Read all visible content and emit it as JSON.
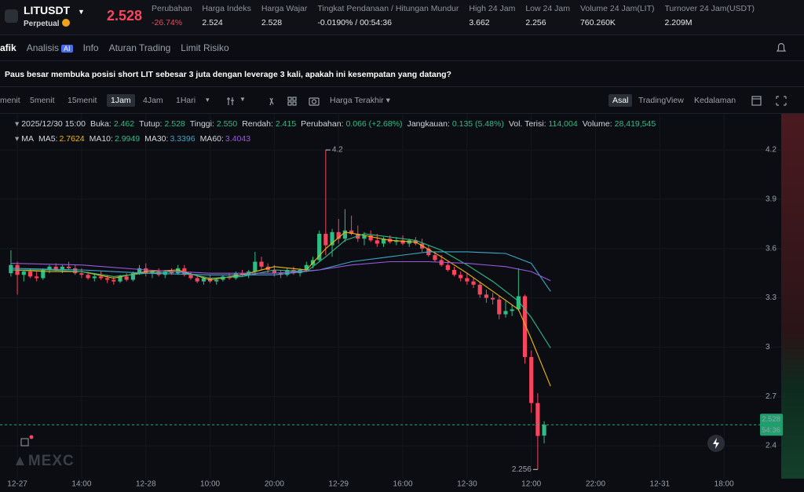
{
  "header": {
    "symbol": "LITUSDT",
    "subtitle": "Perpetual",
    "price": "2.528",
    "stats": [
      {
        "label": "Perubahan",
        "value": "-26.74%"
      },
      {
        "label": "Harga Indeks",
        "value": "2.524"
      },
      {
        "label": "Harga Wajar",
        "value": "2.528"
      },
      {
        "label": "Tingkat Pendanaan / Hitungan Mundur",
        "value": "-0.0190% / 00:54:36"
      },
      {
        "label": "High 24 Jam",
        "value": "3.662"
      },
      {
        "label": "Low 24 Jam",
        "value": "2.256"
      },
      {
        "label": "Volume 24 Jam(LIT)",
        "value": "760.260K"
      },
      {
        "label": "Turnover 24 Jam(USDT)",
        "value": "2.209M"
      }
    ]
  },
  "tabs": [
    "afik",
    "Analisis",
    "Info",
    "Aturan Trading",
    "Limit Risiko"
  ],
  "ai_badge": "AI",
  "notice": "Paus besar membuka posisi short LIT sebesar 3 juta dengan leverage 3 kali, apakah ini kesempatan yang datang?",
  "toolbar": {
    "intervals": [
      "menit",
      "5menit",
      "15menit",
      "1Jam",
      "4Jam",
      "1Hari"
    ],
    "price_source": "Harga Terakhir",
    "views": [
      "Asal",
      "TradingView",
      "Kedalaman"
    ]
  },
  "ohlc_info": {
    "time": "2025/12/30 15:00",
    "items": [
      {
        "label": "Buka:",
        "value": "2.462"
      },
      {
        "label": "Tutup:",
        "value": "2.528"
      },
      {
        "label": "Tinggi:",
        "value": "2.550"
      },
      {
        "label": "Rendah:",
        "value": "2.415"
      },
      {
        "label": "Perubahan:",
        "value": "0.066 (+2.68%)"
      },
      {
        "label": "Jangkauan:",
        "value": "0.135 (5.48%)"
      },
      {
        "label": "Vol. Terisi:",
        "value": "114,004"
      },
      {
        "label": "Volume:",
        "value": "28,419,545"
      }
    ]
  },
  "ma_legend": {
    "title": "MA",
    "items": [
      {
        "label": "MA5:",
        "value": "2.7624"
      },
      {
        "label": "MA10:",
        "value": "2.9949"
      },
      {
        "label": "MA30:",
        "value": "3.3396"
      },
      {
        "label": "MA60:",
        "value": "3.4043"
      }
    ]
  },
  "watermark": "MEXC",
  "chart_data": {
    "type": "candlestick",
    "up_color": "#2ebd85",
    "down_color": "#f6465d",
    "x": [
      -1,
      0,
      1,
      2,
      3,
      4,
      5,
      6,
      7,
      8,
      9,
      10,
      11,
      12,
      13,
      14,
      15,
      16,
      17,
      18,
      19,
      20,
      21,
      22,
      23,
      24,
      25,
      26,
      27,
      28,
      29,
      30,
      31,
      32,
      33,
      34,
      35,
      36,
      37,
      38,
      39,
      40,
      41,
      42,
      43,
      44,
      45,
      46,
      47,
      48,
      49,
      50,
      51,
      52,
      53,
      54,
      55,
      56,
      57,
      58,
      59,
      60,
      61,
      62,
      63,
      64,
      65,
      66,
      67,
      68,
      69,
      70,
      71,
      72,
      73,
      74,
      75,
      76,
      77,
      78,
      79,
      80,
      81,
      82
    ],
    "open": [
      3.45,
      3.5,
      3.44,
      3.46,
      3.43,
      3.42,
      3.47,
      3.49,
      3.47,
      3.49,
      3.48,
      3.45,
      3.44,
      3.42,
      3.43,
      3.42,
      3.41,
      3.4,
      3.43,
      3.41,
      3.45,
      3.48,
      3.45,
      3.46,
      3.44,
      3.46,
      3.45,
      3.48,
      3.44,
      3.42,
      3.4,
      3.42,
      3.4,
      3.41,
      3.43,
      3.42,
      3.45,
      3.44,
      3.46,
      3.52,
      3.49,
      3.47,
      3.45,
      3.44,
      3.47,
      3.45,
      3.47,
      3.5,
      3.53,
      3.69,
      3.62,
      3.7,
      3.66,
      3.71,
      3.69,
      3.66,
      3.68,
      3.65,
      3.63,
      3.66,
      3.64,
      3.65,
      3.63,
      3.65,
      3.63,
      3.6,
      3.56,
      3.53,
      3.5,
      3.47,
      3.44,
      3.42,
      3.4,
      3.38,
      3.32,
      3.3,
      3.29,
      3.2,
      3.22,
      3.23,
      3.31,
      2.94,
      2.66,
      2.462
    ],
    "high": [
      3.59,
      3.52,
      3.47,
      3.48,
      3.46,
      3.48,
      3.5,
      3.51,
      3.5,
      3.52,
      3.5,
      3.48,
      3.46,
      3.45,
      3.46,
      3.44,
      3.43,
      3.44,
      3.45,
      3.46,
      3.5,
      3.51,
      3.47,
      3.48,
      3.47,
      3.48,
      3.5,
      3.5,
      3.46,
      3.44,
      3.43,
      3.44,
      3.42,
      3.44,
      3.45,
      3.46,
      3.47,
      3.47,
      3.58,
      3.55,
      3.51,
      3.5,
      3.47,
      3.48,
      3.49,
      3.48,
      3.52,
      3.55,
      3.71,
      4.2,
      3.72,
      3.78,
      3.84,
      3.8,
      3.74,
      3.7,
      3.71,
      3.69,
      3.67,
      3.68,
      3.67,
      3.68,
      3.66,
      3.67,
      3.66,
      3.62,
      3.58,
      3.56,
      3.52,
      3.49,
      3.46,
      3.45,
      3.42,
      3.4,
      3.35,
      3.33,
      3.31,
      3.28,
      3.26,
      3.48,
      3.32,
      2.98,
      2.72,
      2.55
    ],
    "low": [
      3.43,
      3.32,
      3.4,
      3.42,
      3.4,
      3.41,
      3.45,
      3.46,
      3.45,
      3.47,
      3.44,
      3.42,
      3.41,
      3.4,
      3.41,
      3.39,
      3.38,
      3.39,
      3.4,
      3.4,
      3.44,
      3.43,
      3.42,
      3.43,
      3.42,
      3.44,
      3.44,
      3.43,
      3.41,
      3.39,
      3.38,
      3.39,
      3.38,
      3.4,
      3.41,
      3.41,
      3.43,
      3.42,
      3.45,
      3.47,
      3.45,
      3.43,
      3.42,
      3.43,
      3.44,
      3.43,
      3.46,
      3.48,
      3.52,
      3.56,
      3.55,
      3.63,
      3.64,
      3.68,
      3.64,
      3.62,
      3.64,
      3.61,
      3.61,
      3.63,
      3.62,
      3.62,
      3.61,
      3.62,
      3.58,
      3.55,
      3.52,
      3.49,
      3.46,
      3.43,
      3.4,
      3.38,
      3.36,
      3.3,
      3.27,
      3.26,
      3.17,
      3.18,
      3.19,
      3.22,
      2.9,
      2.6,
      2.256,
      2.415
    ],
    "close": [
      3.5,
      3.44,
      3.46,
      3.43,
      3.42,
      3.47,
      3.49,
      3.47,
      3.49,
      3.48,
      3.45,
      3.44,
      3.42,
      3.43,
      3.42,
      3.41,
      3.4,
      3.43,
      3.41,
      3.45,
      3.48,
      3.45,
      3.46,
      3.44,
      3.46,
      3.45,
      3.48,
      3.44,
      3.42,
      3.4,
      3.42,
      3.4,
      3.41,
      3.43,
      3.42,
      3.45,
      3.44,
      3.46,
      3.52,
      3.49,
      3.47,
      3.45,
      3.44,
      3.47,
      3.45,
      3.47,
      3.5,
      3.53,
      3.69,
      3.62,
      3.7,
      3.66,
      3.71,
      3.69,
      3.66,
      3.68,
      3.65,
      3.63,
      3.66,
      3.64,
      3.65,
      3.63,
      3.65,
      3.63,
      3.6,
      3.56,
      3.53,
      3.5,
      3.47,
      3.44,
      3.42,
      3.4,
      3.38,
      3.32,
      3.3,
      3.29,
      3.2,
      3.22,
      3.23,
      3.31,
      2.94,
      2.66,
      2.46,
      2.528
    ],
    "lines": [
      {
        "name": "MA5",
        "color": "#f0b90b",
        "x": [
          -1,
          5,
          10,
          15,
          20,
          25,
          30,
          35,
          40,
          45,
          48,
          51,
          54,
          58,
          62,
          66,
          70,
          74,
          78,
          80,
          83
        ],
        "values": [
          3.47,
          3.46,
          3.46,
          3.42,
          3.46,
          3.47,
          3.41,
          3.44,
          3.49,
          3.47,
          3.6,
          3.7,
          3.68,
          3.65,
          3.64,
          3.55,
          3.45,
          3.34,
          3.23,
          3.05,
          2.7624
        ]
      },
      {
        "name": "MA10",
        "color": "#2ebd85",
        "x": [
          -1,
          5,
          10,
          15,
          20,
          25,
          30,
          35,
          40,
          45,
          48,
          51,
          54,
          58,
          62,
          66,
          70,
          74,
          78,
          80,
          83
        ],
        "values": [
          3.47,
          3.47,
          3.46,
          3.43,
          3.45,
          3.46,
          3.42,
          3.43,
          3.47,
          3.46,
          3.55,
          3.65,
          3.69,
          3.67,
          3.65,
          3.59,
          3.5,
          3.4,
          3.28,
          3.18,
          2.9949
        ]
      },
      {
        "name": "MA30",
        "color": "#3fa7c9",
        "x": [
          -1,
          10,
          20,
          30,
          40,
          47,
          52,
          58,
          64,
          70,
          76,
          80,
          83
        ],
        "values": [
          3.48,
          3.47,
          3.45,
          3.44,
          3.44,
          3.47,
          3.52,
          3.55,
          3.58,
          3.58,
          3.57,
          3.51,
          3.3396
        ]
      },
      {
        "name": "MA60",
        "color": "#9b59e0",
        "x": [
          -1,
          10,
          20,
          30,
          40,
          47,
          52,
          58,
          64,
          70,
          76,
          80,
          83
        ],
        "values": [
          3.51,
          3.5,
          3.47,
          3.45,
          3.45,
          3.47,
          3.5,
          3.52,
          3.52,
          3.51,
          3.49,
          3.46,
          3.4043
        ]
      }
    ],
    "countdown": "54:36",
    "xlim": [
      -2.7,
      118.9
    ],
    "ylim": [
      2.2,
      4.42
    ],
    "yticks": [
      2.4,
      2.7,
      3,
      3.3,
      3.6,
      3.9,
      4.2
    ],
    "xticks": [
      {
        "value": 0,
        "label": "12-27"
      },
      {
        "value": 10,
        "label": "14:00"
      },
      {
        "value": 20,
        "label": "12-28"
      },
      {
        "value": 30,
        "label": "10:00"
      },
      {
        "value": 40,
        "label": "20:00"
      },
      {
        "value": 50,
        "label": "12-29"
      },
      {
        "value": 60,
        "label": "16:00"
      },
      {
        "value": 70,
        "label": "12-30"
      },
      {
        "value": 80,
        "label": "12:00"
      },
      {
        "value": 90,
        "label": "22:00"
      },
      {
        "value": 100,
        "label": "12-31"
      },
      {
        "value": 110,
        "label": "18:00"
      }
    ],
    "grid": true
  }
}
